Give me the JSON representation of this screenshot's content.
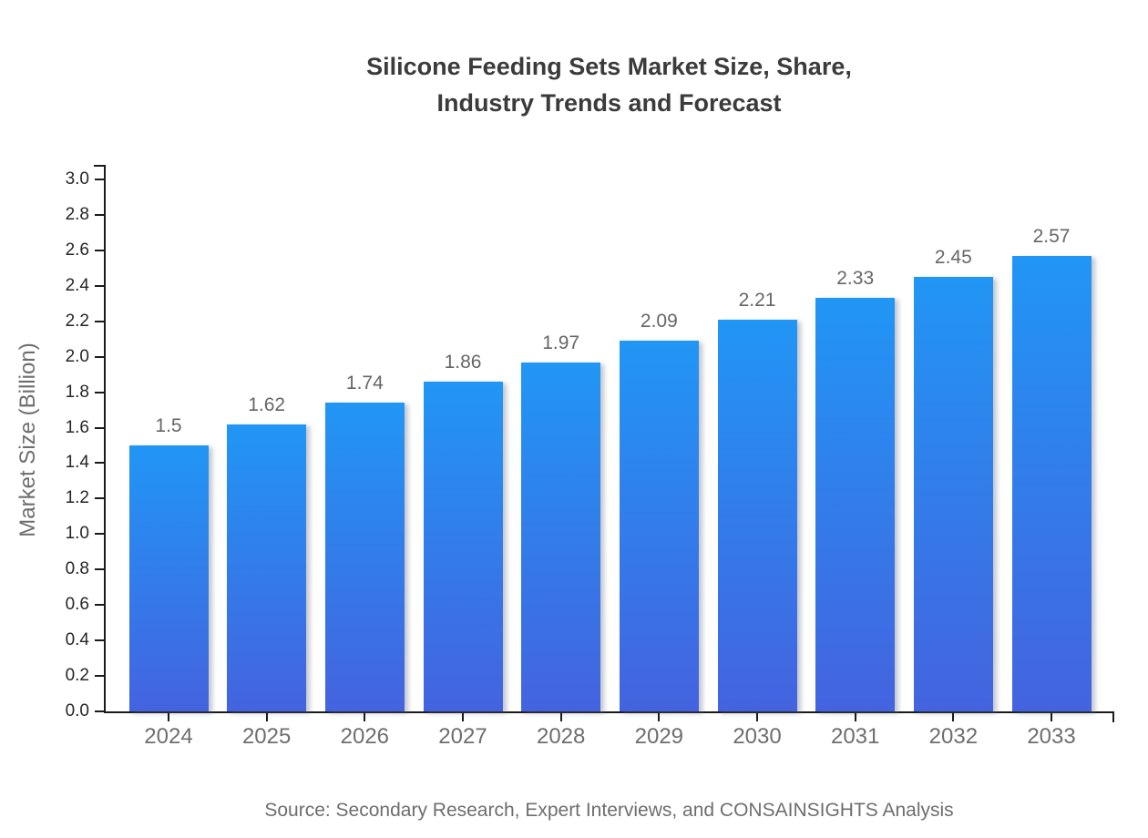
{
  "title": {
    "line1": "Silicone Feeding Sets Market Size, Share,",
    "line2": "Industry Trends and Forecast"
  },
  "source": "Source: Secondary Research, Expert Interviews, and CONSAINSIGHTS Analysis",
  "chart_data": {
    "type": "bar",
    "title": "Silicone Feeding Sets Market Size, Share, Industry Trends and Forecast",
    "categories": [
      "2024",
      "2025",
      "2026",
      "2027",
      "2028",
      "2029",
      "2030",
      "2031",
      "2032",
      "2033"
    ],
    "values": [
      1.5,
      1.62,
      1.74,
      1.86,
      1.97,
      2.09,
      2.21,
      2.33,
      2.45,
      2.57
    ],
    "value_labels": [
      "1.5",
      "1.62",
      "1.74",
      "1.86",
      "1.97",
      "2.09",
      "2.21",
      "2.33",
      "2.45",
      "2.57"
    ],
    "xlabel": "",
    "ylabel": "Market Size (Billion)",
    "ylim": [
      0.0,
      3.0
    ],
    "ytick_step": 0.2,
    "grid": false,
    "legend_position": "none"
  },
  "colors": {
    "bar_gradient_top": "#2196F5",
    "bar_gradient_bottom": "#4463DF",
    "axis_line": "#1a1a1a",
    "title_text": "#3b3b3b",
    "y_tick_text": "#262626",
    "x_tick_text": "#6e6e6e",
    "value_label_text": "#666666",
    "axis_label_text": "#6e6e6e",
    "background": "#ffffff"
  }
}
